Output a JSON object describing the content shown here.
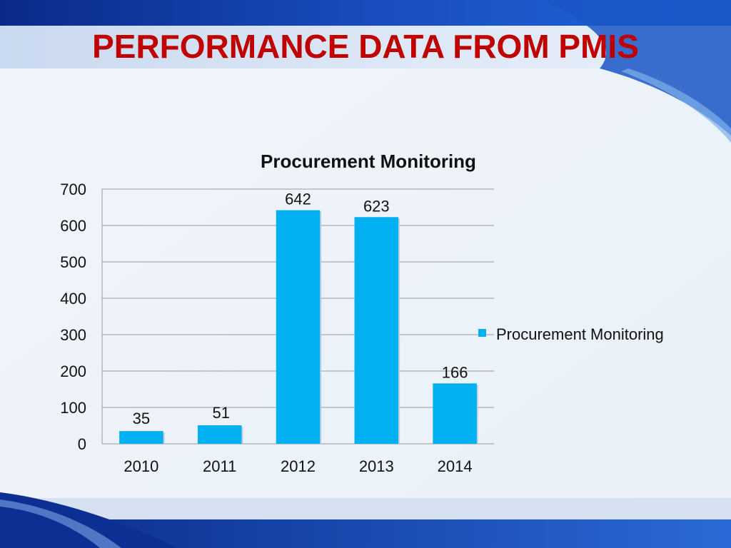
{
  "slide": {
    "title": "PERFORMANCE DATA FROM PMIS",
    "title_color": "#c00000"
  },
  "chart_data": {
    "type": "bar",
    "title": "Procurement Monitoring",
    "categories": [
      "2010",
      "2011",
      "2012",
      "2013",
      "2014"
    ],
    "series": [
      {
        "name": "Procurement Monitoring",
        "values": [
          35,
          51,
          642,
          623,
          166
        ],
        "color": "#00b0f0"
      }
    ],
    "data_labels": [
      "35",
      "51",
      "642",
      "623",
      "166"
    ],
    "ylim": [
      0,
      700
    ],
    "yticks": [
      0,
      100,
      200,
      300,
      400,
      500,
      600,
      700
    ],
    "ytick_labels": [
      "0",
      "100",
      "200",
      "300",
      "400",
      "500",
      "600",
      "700"
    ],
    "grid": true,
    "legend": "right"
  }
}
